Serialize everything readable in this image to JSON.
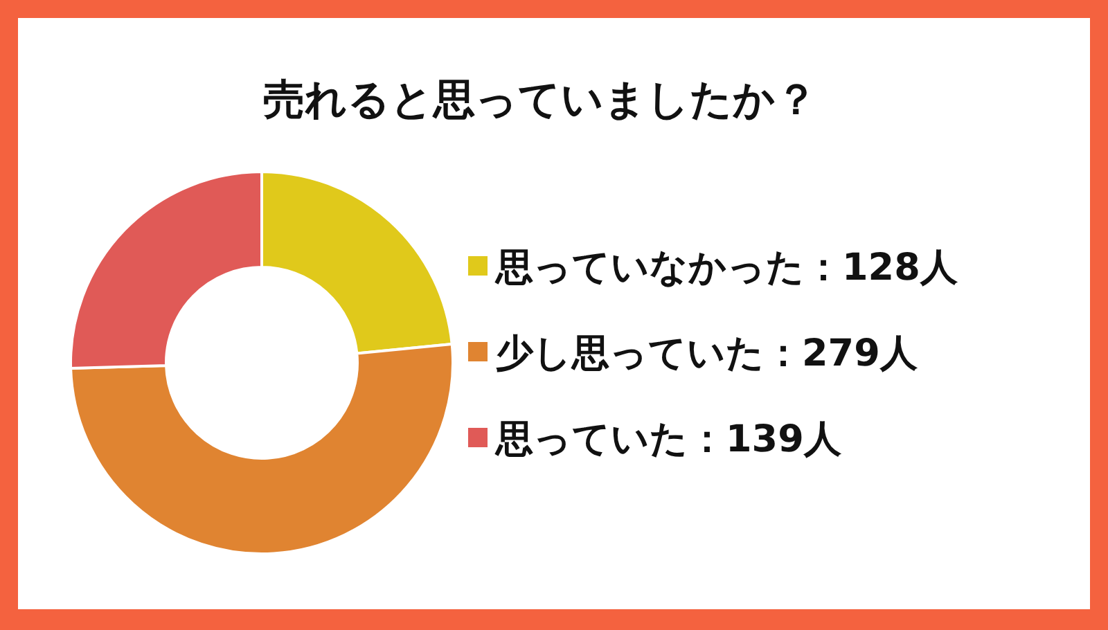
{
  "chart_data": {
    "type": "donut",
    "title": "売れると思っていましたか？",
    "categories": [
      "思っていなかった",
      "少し思っていた",
      "思っていた"
    ],
    "values": [
      128,
      279,
      139
    ],
    "value_labels": [
      "128人",
      "279人",
      "139人"
    ],
    "colors": [
      "#e0c91b",
      "#e08431",
      "#e05a57"
    ],
    "legend": "right"
  }
}
